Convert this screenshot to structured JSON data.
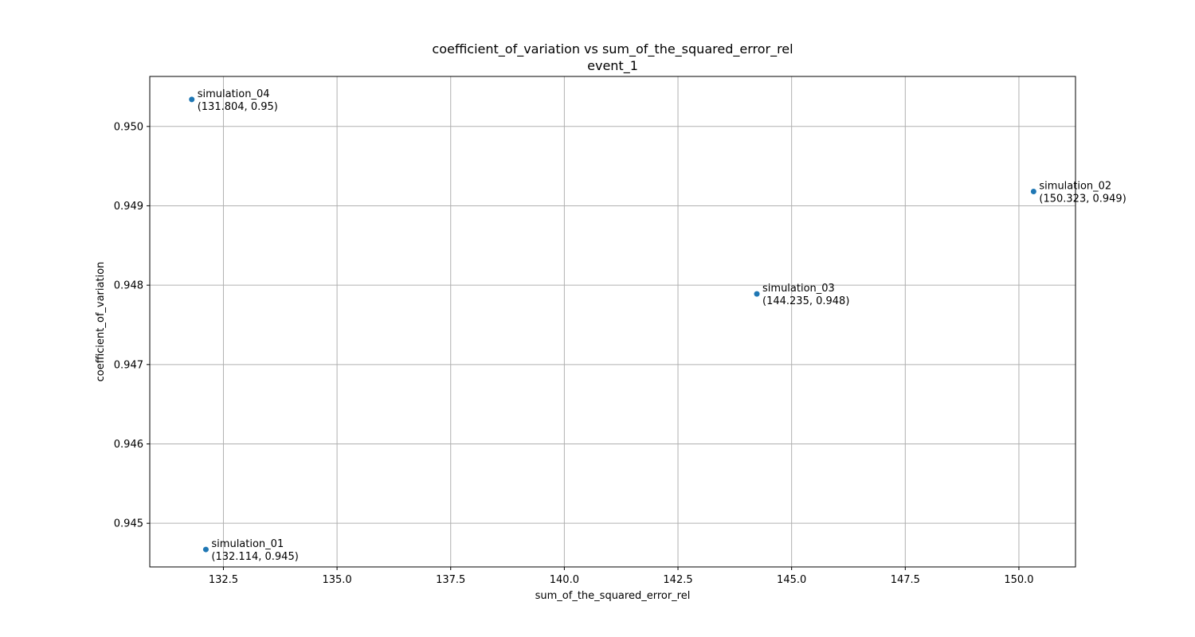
{
  "chart_data": {
    "type": "scatter",
    "title": "coefficient_of_variation vs sum_of_the_squared_error_rel",
    "subtitle": "event_1",
    "xlabel": "sum_of_the_squared_error_rel",
    "ylabel": "coefficient_of_variation",
    "xlim": [
      130.88,
      151.245
    ],
    "ylim": [
      0.94445,
      0.95063
    ],
    "x_ticks": [
      132.5,
      135.0,
      137.5,
      140.0,
      142.5,
      145.0,
      147.5,
      150.0
    ],
    "x_tick_labels": [
      "132.5",
      "135.0",
      "137.5",
      "140.0",
      "142.5",
      "145.0",
      "147.5",
      "150.0"
    ],
    "y_ticks": [
      0.945,
      0.946,
      0.947,
      0.948,
      0.949,
      0.95
    ],
    "y_tick_labels": [
      "0.945",
      "0.946",
      "0.947",
      "0.948",
      "0.949",
      "0.950"
    ],
    "grid": true,
    "marker_color": "#1f77b4",
    "points": [
      {
        "name": "simulation_04",
        "x": 131.804,
        "y": 0.95034,
        "label": "(131.804, 0.95)"
      },
      {
        "name": "simulation_02",
        "x": 150.323,
        "y": 0.94918,
        "label": "(150.323, 0.949)"
      },
      {
        "name": "simulation_03",
        "x": 144.235,
        "y": 0.94789,
        "label": "(144.235, 0.948)"
      },
      {
        "name": "simulation_01",
        "x": 132.114,
        "y": 0.94467,
        "label": "(132.114, 0.945)"
      }
    ]
  }
}
